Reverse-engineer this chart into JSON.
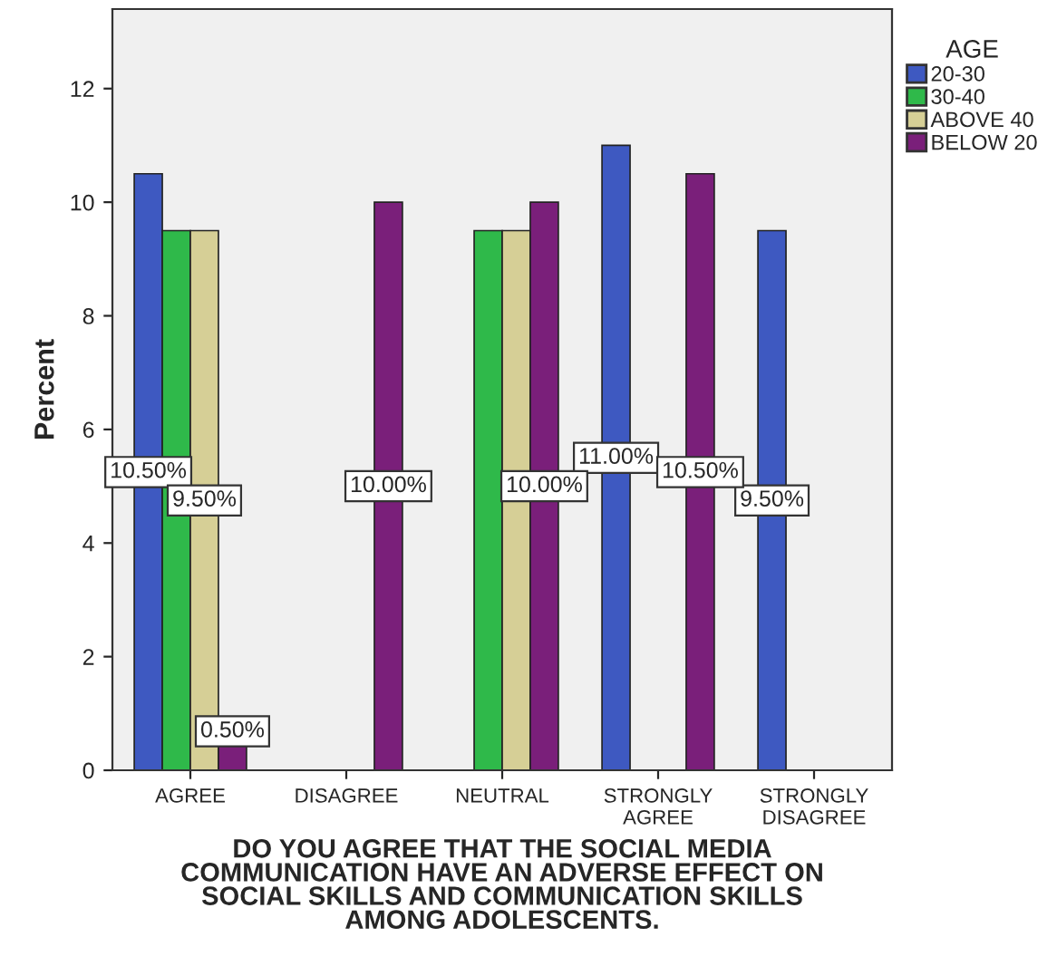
{
  "chart_data": {
    "type": "bar",
    "xlabel": "DO YOU AGREE THAT THE SOCIAL MEDIA\nCOMMUNICATION HAVE AN ADVERSE EFFECT ON\nSOCIAL SKILLS AND COMMUNICATION SKILLS\nAMONG ADOLESCENTS.",
    "ylabel": "Percent",
    "legend_title": "AGE",
    "categories": [
      "AGREE",
      "DISAGREE",
      "NEUTRAL",
      "STRONGLY\nAGREE",
      "STRONGLY\nDISAGREE"
    ],
    "series": [
      {
        "name": "20-30",
        "color": "#3e59c1",
        "values": [
          10.5,
          null,
          null,
          11.0,
          9.5
        ],
        "value_labels": [
          "10.50%",
          null,
          null,
          "11.00%",
          "9.50%"
        ]
      },
      {
        "name": "30-40",
        "color": "#2fb94a",
        "values": [
          9.5,
          null,
          9.5,
          null,
          null
        ],
        "value_labels": [
          null,
          null,
          null,
          null,
          null
        ]
      },
      {
        "name": "ABOVE 40",
        "color": "#d6cf96",
        "values": [
          9.5,
          null,
          9.5,
          null,
          null
        ],
        "value_labels": [
          "9.50%",
          null,
          null,
          null,
          null
        ]
      },
      {
        "name": "BELOW 20",
        "color": "#7a1f7a",
        "values": [
          0.5,
          10.0,
          10.0,
          10.5,
          null
        ],
        "value_labels": [
          "0.50%",
          "10.00%",
          "10.00%",
          "10.50%",
          null
        ]
      }
    ],
    "ylim": [
      0,
      13.4
    ],
    "yticks": [
      0,
      2,
      4,
      6,
      8,
      10,
      12
    ],
    "grid": false,
    "legend": "top right"
  }
}
